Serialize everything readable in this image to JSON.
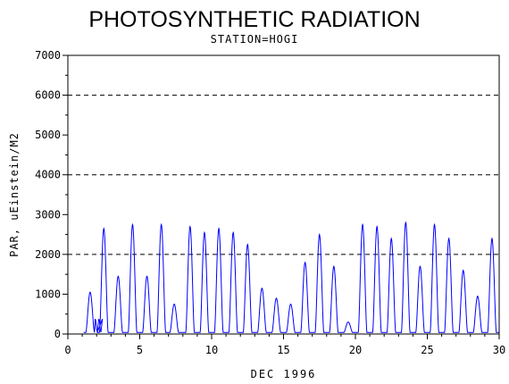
{
  "chart_data": {
    "type": "line",
    "title": "PHOTOSYNTHETIC RADIATION",
    "subtitle": "STATION=HOGI",
    "xlabel": "DEC 1996",
    "ylabel": "PAR, uEinstein/M2",
    "xlim": [
      0,
      30
    ],
    "ylim": [
      0,
      7000
    ],
    "x_ticks": [
      0,
      5,
      10,
      15,
      20,
      25,
      30
    ],
    "y_ticks": [
      0,
      1000,
      2000,
      3000,
      4000,
      5000,
      6000,
      7000
    ],
    "reference_lines": [
      2000,
      4000,
      6000
    ],
    "grid": false,
    "legend": "none",
    "line_color": "#0000ff",
    "series": [
      {
        "daily_peaks": [
          {
            "day": 1,
            "x": 1.55,
            "peak": 1050,
            "shoulder": 350
          },
          {
            "day": 2,
            "x": 2.5,
            "peak": 2650
          },
          {
            "day": 3,
            "x": 3.5,
            "peak": 1450
          },
          {
            "day": 4,
            "x": 4.5,
            "peak": 2750
          },
          {
            "day": 5,
            "x": 5.5,
            "peak": 1450
          },
          {
            "day": 6,
            "x": 6.5,
            "peak": 2750
          },
          {
            "day": 7,
            "x": 7.4,
            "peak": 750
          },
          {
            "day": 8,
            "x": 8.5,
            "peak": 2700
          },
          {
            "day": 9,
            "x": 9.5,
            "peak": 2550
          },
          {
            "day": 10,
            "x": 10.5,
            "peak": 2650
          },
          {
            "day": 11,
            "x": 11.5,
            "peak": 2550
          },
          {
            "day": 12,
            "x": 12.5,
            "peak": 2250
          },
          {
            "day": 13,
            "x": 13.5,
            "peak": 1150
          },
          {
            "day": 14,
            "x": 14.5,
            "peak": 900
          },
          {
            "day": 15,
            "x": 15.5,
            "peak": 750
          },
          {
            "day": 16,
            "x": 16.5,
            "peak": 1800
          },
          {
            "day": 17,
            "x": 17.5,
            "peak": 2500
          },
          {
            "day": 18,
            "x": 18.5,
            "peak": 1700
          },
          {
            "day": 19,
            "x": 19.5,
            "peak": 300
          },
          {
            "day": 20,
            "x": 20.5,
            "peak": 2750
          },
          {
            "day": 21,
            "x": 21.5,
            "peak": 2700
          },
          {
            "day": 22,
            "x": 22.5,
            "peak": 2400
          },
          {
            "day": 23,
            "x": 23.5,
            "peak": 2800
          },
          {
            "day": 24,
            "x": 24.5,
            "peak": 1700
          },
          {
            "day": 25,
            "x": 25.5,
            "peak": 2750
          },
          {
            "day": 26,
            "x": 26.5,
            "peak": 2400
          },
          {
            "day": 27,
            "x": 27.5,
            "peak": 1600
          },
          {
            "day": 28,
            "x": 28.5,
            "peak": 950
          },
          {
            "day": 29,
            "x": 29.5,
            "peak": 2400
          }
        ]
      }
    ]
  }
}
